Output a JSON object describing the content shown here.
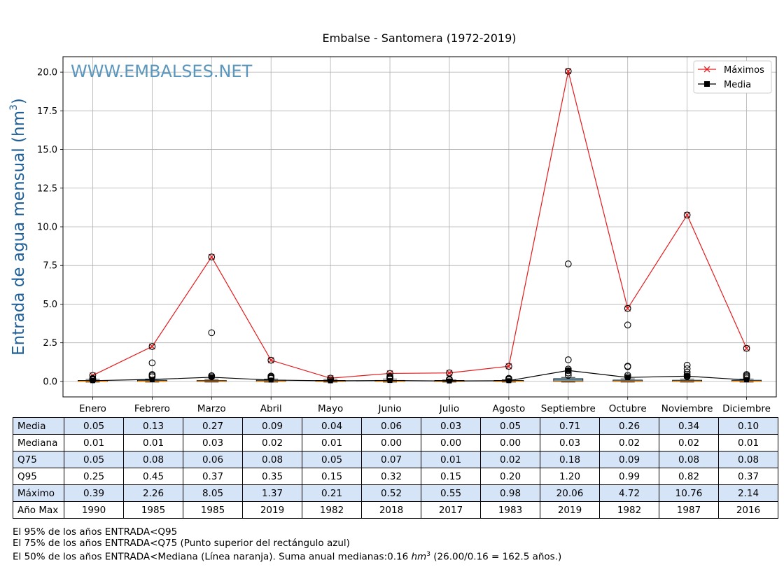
{
  "chart_data": {
    "type": "line",
    "title": "Embalse - Santomera (1972-2019)",
    "watermark": "WWW.EMBALSES.NET",
    "ylabel": "Entrada de agua mensual (hm",
    "ylabel_sup": "3",
    "ylabel_close": ")",
    "ylim": [
      -1.0,
      21.0
    ],
    "yticks": [
      0.0,
      2.5,
      5.0,
      7.5,
      10.0,
      12.5,
      15.0,
      17.5,
      20.0
    ],
    "grid": true,
    "legend_position": "top-right",
    "categories": [
      "Enero",
      "Febrero",
      "Marzo",
      "Abril",
      "Mayo",
      "Junio",
      "Julio",
      "Agosto",
      "Septiembre",
      "Octubre",
      "Noviembre",
      "Diciembre"
    ],
    "series": [
      {
        "name": "Máximos",
        "marker": "x",
        "color": "#e31a1c",
        "values": [
          0.39,
          2.26,
          8.05,
          1.37,
          0.21,
          0.52,
          0.55,
          0.98,
          20.06,
          4.72,
          10.76,
          2.14
        ]
      },
      {
        "name": "Media",
        "marker": "square",
        "color": "#000000",
        "values": [
          0.05,
          0.13,
          0.27,
          0.09,
          0.04,
          0.06,
          0.03,
          0.05,
          0.71,
          0.26,
          0.34,
          0.1
        ]
      }
    ],
    "boxes": {
      "median": [
        0.01,
        0.01,
        0.03,
        0.02,
        0.01,
        0.0,
        0.0,
        0.0,
        0.03,
        0.02,
        0.02,
        0.01
      ],
      "q75": [
        0.05,
        0.08,
        0.06,
        0.08,
        0.05,
        0.07,
        0.01,
        0.02,
        0.18,
        0.09,
        0.08,
        0.08
      ],
      "fill_color": "#4a90c4",
      "median_color": "#ff8c00"
    },
    "outliers": [
      [
        0.39,
        0.2,
        0.1,
        0.15
      ],
      [
        2.26,
        1.2,
        0.45,
        0.38,
        0.3
      ],
      [
        8.05,
        3.15,
        0.37,
        0.3
      ],
      [
        1.37,
        0.35,
        0.3,
        0.25,
        0.2
      ],
      [
        0.21,
        0.1
      ],
      [
        0.52,
        0.32,
        0.25,
        0.2,
        0.15
      ],
      [
        0.55,
        0.15,
        0.12,
        0.1
      ],
      [
        0.98,
        0.2,
        0.15,
        0.12
      ],
      [
        20.06,
        7.6,
        1.4,
        0.8,
        0.7,
        0.55,
        0.4
      ],
      [
        4.72,
        3.65,
        0.99,
        0.95,
        0.4,
        0.3
      ],
      [
        10.76,
        1.05,
        0.82,
        0.6,
        0.45,
        0.35,
        0.3
      ],
      [
        2.14,
        0.45,
        0.37,
        0.3,
        0.22
      ]
    ]
  },
  "table": {
    "rows": [
      {
        "label": "Media",
        "values": [
          "0.05",
          "0.13",
          "0.27",
          "0.09",
          "0.04",
          "0.06",
          "0.03",
          "0.05",
          "0.71",
          "0.26",
          "0.34",
          "0.10"
        ]
      },
      {
        "label": "Mediana",
        "values": [
          "0.01",
          "0.01",
          "0.03",
          "0.02",
          "0.01",
          "0.00",
          "0.00",
          "0.00",
          "0.03",
          "0.02",
          "0.02",
          "0.01"
        ]
      },
      {
        "label": "Q75",
        "values": [
          "0.05",
          "0.08",
          "0.06",
          "0.08",
          "0.05",
          "0.07",
          "0.01",
          "0.02",
          "0.18",
          "0.09",
          "0.08",
          "0.08"
        ]
      },
      {
        "label": "Q95",
        "values": [
          "0.25",
          "0.45",
          "0.37",
          "0.35",
          "0.15",
          "0.32",
          "0.15",
          "0.20",
          "1.20",
          "0.99",
          "0.82",
          "0.37"
        ]
      },
      {
        "label": "Máximo",
        "values": [
          "0.39",
          "2.26",
          "8.05",
          "1.37",
          "0.21",
          "0.52",
          "0.55",
          "0.98",
          "20.06",
          "4.72",
          "10.76",
          "2.14"
        ]
      },
      {
        "label": "Año Max",
        "values": [
          "1990",
          "1985",
          "1985",
          "2019",
          "1982",
          "2018",
          "2017",
          "1983",
          "2019",
          "1982",
          "1987",
          "2016"
        ]
      }
    ]
  },
  "footnotes": {
    "line1": "El 95% de los años ENTRADA<Q95",
    "line2": "El 75% de los años ENTRADA<Q75 (Punto superior del rectángulo azul)",
    "line3_pre": "El 50% de los años ENTRADA<Mediana (Línea naranja). Suma anual medianas:0.16 ",
    "line3_unit": "hm",
    "line3_sup": "3",
    "line3_post": " (26.00/0.16 = 162.5 años.)"
  }
}
